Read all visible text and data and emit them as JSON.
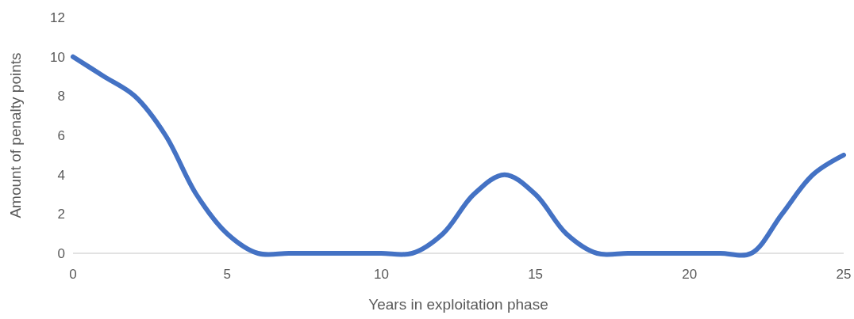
{
  "chart_data": {
    "type": "line",
    "xlabel": "Years in exploitation phase",
    "ylabel": "Amount of penalty points",
    "x": [
      0,
      1,
      2,
      3,
      4,
      5,
      6,
      7,
      8,
      9,
      10,
      11,
      12,
      13,
      14,
      15,
      16,
      17,
      18,
      19,
      20,
      21,
      22,
      23,
      24,
      25
    ],
    "series": [
      {
        "color": "#4472c4",
        "values": [
          10,
          9,
          8,
          6,
          3,
          1,
          0,
          0,
          0,
          0,
          0,
          0,
          1,
          3,
          4,
          3,
          1,
          0,
          0,
          0,
          0,
          0,
          0,
          2,
          4,
          5
        ]
      }
    ],
    "xlim": [
      0,
      25
    ],
    "xticks": [
      0,
      5,
      10,
      15,
      20,
      25
    ],
    "ylim": [
      0,
      12
    ],
    "yticks": [
      0,
      2,
      4,
      6,
      8,
      10,
      12
    ],
    "grid": false,
    "marker": "none",
    "line_style": "solid"
  }
}
